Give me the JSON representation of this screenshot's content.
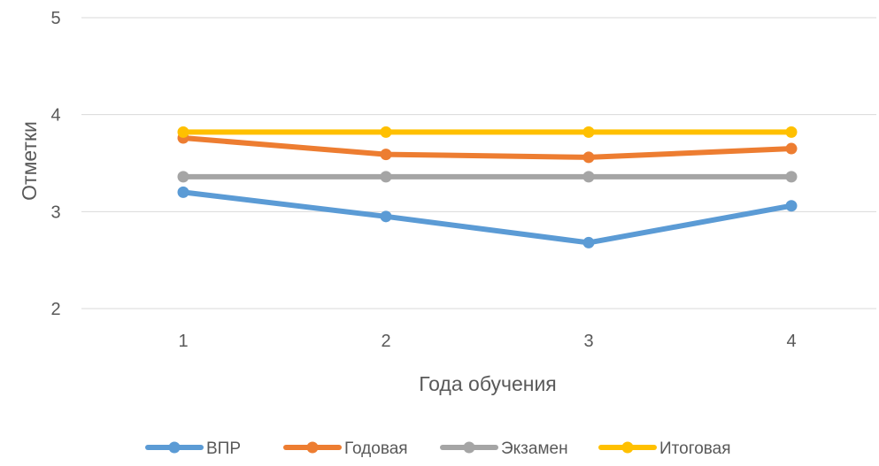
{
  "chart_data": {
    "type": "line",
    "title": "",
    "xlabel": "Года обучения",
    "ylabel": "Отметки",
    "categories": [
      "1",
      "2",
      "3",
      "4"
    ],
    "ylim": [
      2,
      5
    ],
    "yticks": [
      "2",
      "3",
      "4",
      "5"
    ],
    "grid": true,
    "legend_position": "bottom",
    "series": [
      {
        "name": "ВПР",
        "color": "#5B9BD5",
        "values": [
          3.2,
          2.95,
          2.68,
          3.06
        ]
      },
      {
        "name": "Годовая",
        "color": "#ED7D31",
        "values": [
          3.76,
          3.59,
          3.56,
          3.65
        ]
      },
      {
        "name": "Экзамен",
        "color": "#A5A5A5",
        "values": [
          3.36,
          3.36,
          3.36,
          3.36
        ]
      },
      {
        "name": "Итоговая",
        "color": "#FFC000",
        "values": [
          3.82,
          3.82,
          3.82,
          3.82
        ]
      }
    ]
  }
}
